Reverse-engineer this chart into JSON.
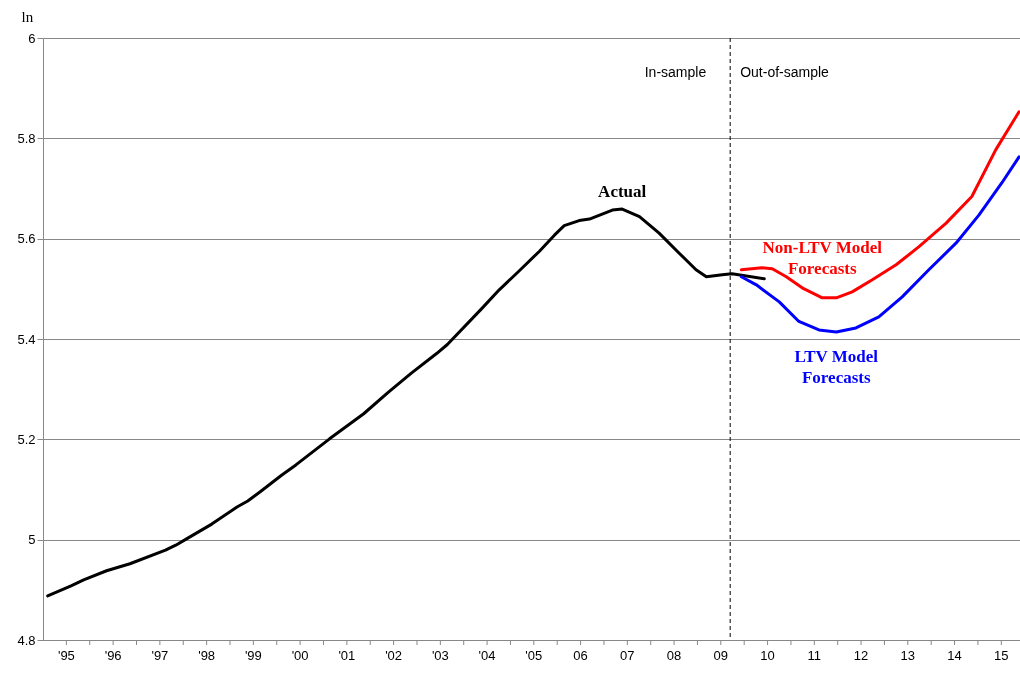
{
  "chart_data": {
    "type": "line",
    "ylabel": "ln",
    "xlim": [
      1994.5,
      2015.4
    ],
    "xticks": [
      {
        "value": 1995,
        "label": "'95"
      },
      {
        "value": 1995.5,
        "label": null
      },
      {
        "value": 1996,
        "label": "'96"
      },
      {
        "value": 1996.5,
        "label": null
      },
      {
        "value": 1997,
        "label": "'97"
      },
      {
        "value": 1997.5,
        "label": null
      },
      {
        "value": 1998,
        "label": "'98"
      },
      {
        "value": 1998.5,
        "label": null
      },
      {
        "value": 1999,
        "label": "'99"
      },
      {
        "value": 1999.5,
        "label": null
      },
      {
        "value": 2000,
        "label": "'00"
      },
      {
        "value": 2000.5,
        "label": null
      },
      {
        "value": 2001,
        "label": "'01"
      },
      {
        "value": 2001.5,
        "label": null
      },
      {
        "value": 2002,
        "label": "'02"
      },
      {
        "value": 2002.5,
        "label": null
      },
      {
        "value": 2003,
        "label": "'03"
      },
      {
        "value": 2003.5,
        "label": null
      },
      {
        "value": 2004,
        "label": "'04"
      },
      {
        "value": 2004.5,
        "label": null
      },
      {
        "value": 2005,
        "label": "'05"
      },
      {
        "value": 2005.5,
        "label": null
      },
      {
        "value": 2006,
        "label": "06"
      },
      {
        "value": 2006.5,
        "label": null
      },
      {
        "value": 2007,
        "label": "07"
      },
      {
        "value": 2007.5,
        "label": null
      },
      {
        "value": 2008,
        "label": "08"
      },
      {
        "value": 2008.5,
        "label": null
      },
      {
        "value": 2009,
        "label": "09"
      },
      {
        "value": 2009.5,
        "label": null
      },
      {
        "value": 2010,
        "label": "10"
      },
      {
        "value": 2010.5,
        "label": null
      },
      {
        "value": 2011,
        "label": "11"
      },
      {
        "value": 2011.5,
        "label": null
      },
      {
        "value": 2012,
        "label": "12"
      },
      {
        "value": 2012.5,
        "label": null
      },
      {
        "value": 2013,
        "label": "13"
      },
      {
        "value": 2013.5,
        "label": null
      },
      {
        "value": 2014,
        "label": "14"
      },
      {
        "value": 2014.5,
        "label": null
      },
      {
        "value": 2015,
        "label": "15"
      }
    ],
    "ylim": [
      4.8,
      6
    ],
    "yticks": [
      4.8,
      5,
      5.2,
      5.4,
      5.6,
      5.8,
      6
    ],
    "grid": "y",
    "legend": false,
    "series": [
      {
        "name": "Actual",
        "color": "#000000",
        "x": [
          1994.6,
          1995.1,
          1995.37,
          1995.86,
          1996.36,
          1997.12,
          1997.34,
          1997.58,
          1998.11,
          1998.65,
          1998.88,
          1999.14,
          1999.61,
          1999.91,
          2000.63,
          2001.36,
          2001.89,
          2002.38,
          2002.92,
          2003.15,
          2003.88,
          2004.26,
          2004.69,
          2005.12,
          2005.44,
          2005.65,
          2005.97,
          2006.19,
          2006.68,
          2006.89,
          2007.26,
          2007.68,
          2008.11,
          2008.47,
          2008.69,
          2009.03,
          2009.24,
          2009.93
        ],
        "values": [
          4.888,
          4.908,
          4.92,
          4.938,
          4.952,
          4.979,
          4.989,
          5.002,
          5.031,
          5.065,
          5.077,
          5.095,
          5.129,
          5.149,
          5.201,
          5.251,
          5.294,
          5.332,
          5.371,
          5.389,
          5.46,
          5.498,
          5.536,
          5.575,
          5.607,
          5.626,
          5.636,
          5.639,
          5.657,
          5.659,
          5.644,
          5.611,
          5.571,
          5.538,
          5.524,
          5.528,
          5.53,
          5.52
        ]
      },
      {
        "name": "Non-LTV Model Forecasts",
        "color": "#ff0000",
        "x": [
          2009.44,
          2009.88,
          2010.1,
          2010.4,
          2010.74,
          2011.17,
          2011.47,
          2011.81,
          2012.24,
          2012.75,
          2013.24,
          2013.82,
          2014.37,
          2014.88,
          2015.38
        ],
        "values": [
          5.538,
          5.542,
          5.54,
          5.524,
          5.502,
          5.482,
          5.482,
          5.494,
          5.518,
          5.548,
          5.584,
          5.631,
          5.684,
          5.777,
          5.853
        ]
      },
      {
        "name": "LTV Model Forecasts",
        "color": "#0000ff",
        "x": [
          2009.44,
          2009.76,
          2010.25,
          2010.67,
          2011.1,
          2011.47,
          2011.89,
          2012.38,
          2012.88,
          2013.45,
          2014.03,
          2014.52,
          2015.01,
          2015.38
        ],
        "values": [
          5.524,
          5.508,
          5.474,
          5.435,
          5.418,
          5.414,
          5.422,
          5.444,
          5.484,
          5.538,
          5.591,
          5.647,
          5.711,
          5.763
        ]
      }
    ],
    "ref_lines": [
      {
        "axis": "x",
        "value": 2009.2,
        "label": null,
        "color": "#000000",
        "line_style": "dashed"
      }
    ],
    "annotations": [
      "In-sample",
      "Out-of-sample"
    ]
  }
}
